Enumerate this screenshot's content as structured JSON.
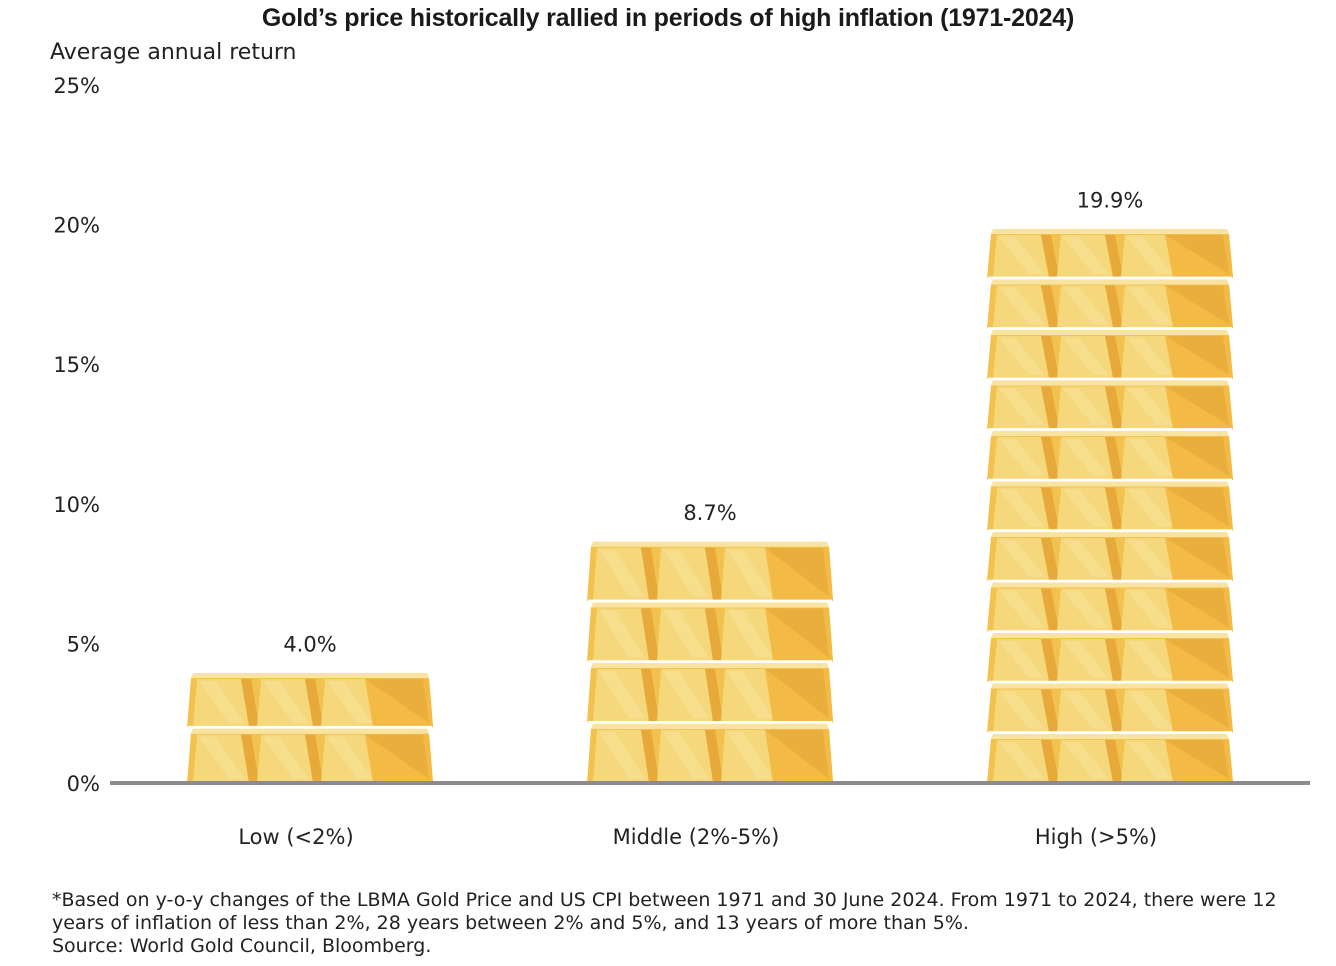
{
  "title": "Gold’s price historically rallied in periods of high inflation (1971-2024)",
  "chart_data": {
    "type": "bar",
    "title": "Gold’s price historically rallied in periods of high inflation (1971-2024)",
    "ylabel": "Average annual return",
    "xlabel": "",
    "categories": [
      "Low (<2%)",
      "Middle (2%-5%)",
      "High (>5%)"
    ],
    "values": [
      4.0,
      8.7,
      19.9
    ],
    "value_labels": [
      "4.0%",
      "8.7%",
      "19.9%"
    ],
    "bars_stacked_gold_ingots": [
      2,
      4,
      11
    ],
    "ylim": [
      0,
      25
    ],
    "yticks": [
      0,
      5,
      10,
      15,
      20,
      25
    ],
    "ytick_labels": [
      "0%",
      "5%",
      "10%",
      "15%",
      "20%",
      "25%"
    ],
    "grid": false,
    "legend": "none",
    "colors": {
      "gold_light": "#f5d77c",
      "gold_mid": "#f2c14e",
      "gold_dark": "#e7a93a",
      "axis": "#8c8c8c"
    }
  },
  "footnote": {
    "line1": "*Based on y-o-y changes of the LBMA Gold Price and US CPI between 1971 and 30 June 2024. From 1971 to 2024, there were 12",
    "line2": "years of inflation of less than 2%, 28 years between 2% and 5%, and 13 years of more than 5%.",
    "line3": "Source: World Gold Council, Bloomberg."
  }
}
